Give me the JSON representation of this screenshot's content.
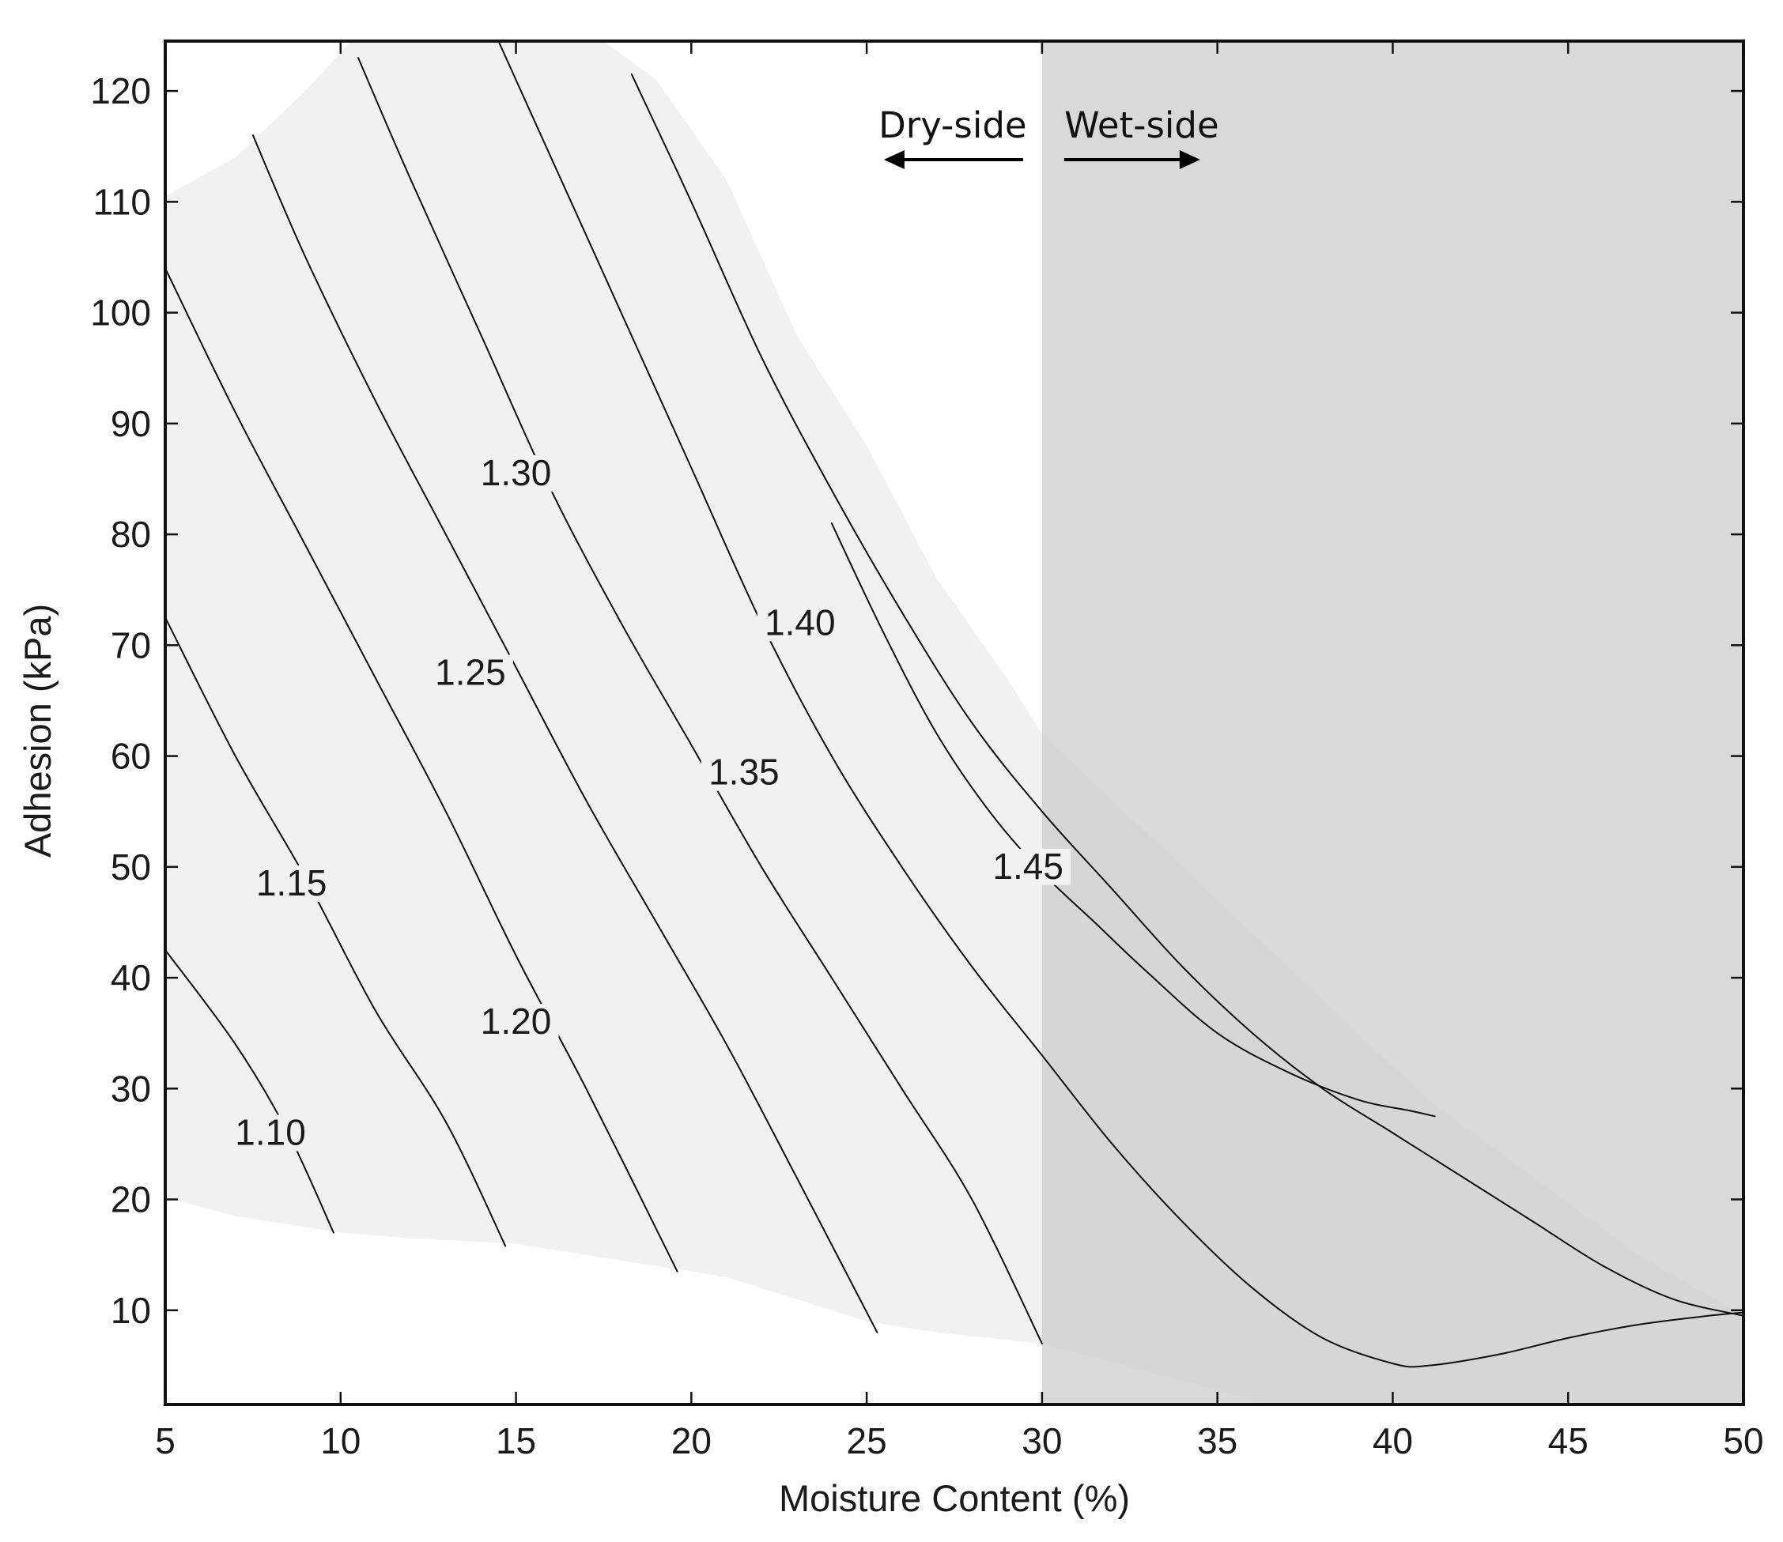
{
  "chart_data": {
    "type": "contour",
    "xlabel": "Moisture Content (%)",
    "ylabel": "Adhesion (kPa)",
    "xlim": [
      5,
      50
    ],
    "ylim": [
      1.5,
      124.5
    ],
    "x_ticks": [
      5,
      10,
      15,
      20,
      25,
      30,
      35,
      40,
      45,
      50
    ],
    "y_ticks": [
      10,
      20,
      30,
      40,
      50,
      60,
      70,
      80,
      90,
      100,
      110,
      120
    ],
    "grid": false,
    "colors": {
      "plot_background": "#ffffff",
      "data_region": "#f1f1f1",
      "wet_side_shading": "#d9d9d9",
      "wet_side_overlap": "#d6d6d6",
      "contour_line": "#111111",
      "axes": "#111111"
    },
    "divider": {
      "x": 30,
      "left_label": "Dry-side",
      "right_label": "Wet-side",
      "left_arrow": "arrow-left",
      "right_arrow": "arrow-right"
    },
    "wet_side_region": {
      "x_from": 30,
      "x_to": 50
    },
    "data_region_boundary": [
      [
        5,
        110.5
      ],
      [
        7,
        114
      ],
      [
        9,
        120
      ],
      [
        10.3,
        124.5
      ],
      [
        17.5,
        124.5
      ],
      [
        19,
        121
      ],
      [
        21,
        112
      ],
      [
        23,
        98
      ],
      [
        25,
        88
      ],
      [
        27,
        76
      ],
      [
        29,
        67
      ],
      [
        30,
        62
      ],
      [
        32,
        56
      ],
      [
        35,
        47
      ],
      [
        38,
        38
      ],
      [
        41,
        29
      ],
      [
        44,
        22
      ],
      [
        47,
        15
      ],
      [
        50,
        9.5
      ],
      [
        50,
        1.5
      ],
      [
        36.5,
        1.5
      ],
      [
        33,
        4.5
      ],
      [
        30,
        7
      ],
      [
        27,
        8
      ],
      [
        25,
        9
      ],
      [
        23,
        11
      ],
      [
        21,
        13
      ],
      [
        19,
        14
      ],
      [
        17,
        15
      ],
      [
        15,
        16
      ],
      [
        12,
        16.5
      ],
      [
        10,
        17
      ],
      [
        7,
        18.5
      ],
      [
        5,
        20.2
      ]
    ],
    "series": [
      {
        "name": "1.10",
        "points": [
          [
            5,
            42.5
          ],
          [
            7,
            34
          ],
          [
            8.5,
            26
          ],
          [
            9.8,
            17
          ]
        ]
      },
      {
        "name": "1.15",
        "points": [
          [
            5,
            72.5
          ],
          [
            7,
            60
          ],
          [
            9,
            49
          ],
          [
            11,
            37
          ],
          [
            13,
            27
          ],
          [
            14.7,
            15.8
          ]
        ]
      },
      {
        "name": "1.20",
        "points": [
          [
            5,
            104
          ],
          [
            7,
            91
          ],
          [
            9,
            79
          ],
          [
            11,
            67
          ],
          [
            13,
            55
          ],
          [
            15,
            42
          ],
          [
            17,
            30
          ],
          [
            19.6,
            13.5
          ]
        ]
      },
      {
        "name": "1.25",
        "points": [
          [
            7.5,
            116
          ],
          [
            9,
            105
          ],
          [
            11,
            92
          ],
          [
            13,
            80
          ],
          [
            15,
            68
          ],
          [
            17,
            56
          ],
          [
            19,
            45
          ],
          [
            21,
            34
          ],
          [
            23,
            22
          ],
          [
            25.3,
            8
          ]
        ]
      },
      {
        "name": "1.30",
        "points": [
          [
            10.5,
            123
          ],
          [
            12,
            112
          ],
          [
            14,
            98
          ],
          [
            16,
            84
          ],
          [
            18,
            72
          ],
          [
            20,
            61
          ],
          [
            22,
            50
          ],
          [
            24,
            40
          ],
          [
            26,
            30
          ],
          [
            28,
            20
          ],
          [
            30,
            7
          ]
        ]
      },
      {
        "name": "1.35",
        "points": [
          [
            14.5,
            124.5
          ],
          [
            16,
            114
          ],
          [
            18,
            100
          ],
          [
            20,
            86
          ],
          [
            22,
            72
          ],
          [
            24,
            60
          ],
          [
            26,
            50
          ],
          [
            28,
            41
          ],
          [
            30,
            33
          ],
          [
            32,
            25
          ],
          [
            34,
            18
          ],
          [
            36,
            12
          ],
          [
            38,
            7.5
          ],
          [
            40,
            5.2
          ],
          [
            41,
            5
          ],
          [
            43,
            6
          ],
          [
            45,
            7.5
          ],
          [
            47,
            8.7
          ],
          [
            49,
            9.5
          ],
          [
            50,
            9.8
          ]
        ]
      },
      {
        "name": "1.40",
        "points": [
          [
            18.3,
            121.5
          ],
          [
            20,
            110
          ],
          [
            22,
            96
          ],
          [
            24,
            84
          ],
          [
            26,
            73
          ],
          [
            28,
            63
          ],
          [
            30,
            55
          ],
          [
            32,
            48
          ],
          [
            34,
            41
          ],
          [
            36,
            35
          ],
          [
            38,
            30
          ],
          [
            40,
            26
          ],
          [
            42,
            22
          ],
          [
            44,
            18
          ],
          [
            46,
            14
          ],
          [
            48,
            11
          ],
          [
            50,
            9.5
          ]
        ]
      },
      {
        "name": "1.45",
        "points": [
          [
            24,
            81
          ],
          [
            25.5,
            71
          ],
          [
            27,
            62
          ],
          [
            28.5,
            55
          ],
          [
            30,
            49.5
          ],
          [
            31.5,
            45
          ],
          [
            33,
            40.5
          ],
          [
            35,
            35
          ],
          [
            37,
            31.5
          ],
          [
            39,
            29
          ],
          [
            40.5,
            28
          ],
          [
            41.2,
            27.5
          ]
        ]
      }
    ],
    "contour_labels": [
      {
        "text": "1.10",
        "x": 8.0,
        "y": 25.5
      },
      {
        "text": "1.15",
        "x": 8.6,
        "y": 48.0
      },
      {
        "text": "1.20",
        "x": 15.0,
        "y": 35.5
      },
      {
        "text": "1.25",
        "x": 13.7,
        "y": 67.0
      },
      {
        "text": "1.30",
        "x": 15.0,
        "y": 85.0
      },
      {
        "text": "1.35",
        "x": 21.5,
        "y": 58.0
      },
      {
        "text": "1.40",
        "x": 23.1,
        "y": 71.5
      },
      {
        "text": "1.45",
        "x": 29.6,
        "y": 49.5
      }
    ]
  }
}
